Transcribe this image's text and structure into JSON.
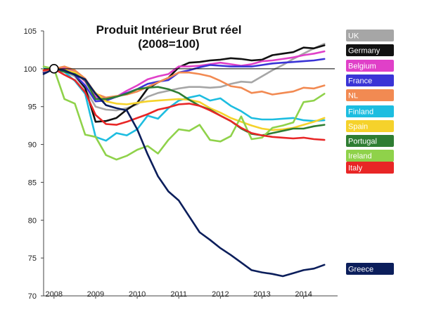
{
  "chart_data": {
    "type": "line",
    "title": "Produit Intérieur Brut réel",
    "subtitle": "(2008=100)",
    "xlabel": "",
    "ylabel": "",
    "xlim": [
      2007.75,
      2014.75
    ],
    "ylim": [
      70,
      105
    ],
    "y_ticks": [
      70,
      75,
      80,
      85,
      90,
      95,
      100,
      105
    ],
    "y_tick_labels": [
      "70",
      "75",
      "80",
      "85",
      "90",
      "95",
      "100",
      "105"
    ],
    "x_ticks": [
      2008,
      2009,
      2010,
      2011,
      2012,
      2013,
      2014
    ],
    "x_tick_labels": [
      "2008",
      "2009",
      "2010",
      "2011",
      "2012",
      "2013",
      "2014"
    ],
    "reference_line": 100,
    "reference_marker": {
      "x": 2008,
      "y": 100
    },
    "grid": false,
    "legend_placement": "right",
    "series": [
      {
        "name": "UK",
        "color": "#a6a6a6",
        "x": [
          2007.75,
          2008,
          2008.25,
          2008.5,
          2008.75,
          2009,
          2009.25,
          2009.5,
          2009.75,
          2010,
          2010.25,
          2010.5,
          2010.75,
          2011,
          2011.25,
          2011.5,
          2011.75,
          2012,
          2012.25,
          2012.5,
          2012.75,
          2013,
          2013.25,
          2013.5,
          2013.75,
          2014,
          2014.25,
          2014.5
        ],
        "values": [
          99.8,
          100,
          99.6,
          99,
          97.3,
          95,
          94.6,
          94.5,
          94.8,
          95.3,
          96.3,
          96.8,
          97.1,
          97.4,
          97.6,
          97.6,
          97.5,
          97.6,
          98,
          98.3,
          98.2,
          99,
          99.8,
          100.5,
          101.3,
          102,
          102.7,
          103.3
        ]
      },
      {
        "name": "Germany",
        "color": "#111111",
        "x": [
          2007.75,
          2008,
          2008.25,
          2008.5,
          2008.75,
          2009,
          2009.25,
          2009.5,
          2009.75,
          2010,
          2010.25,
          2010.5,
          2010.75,
          2011,
          2011.25,
          2011.5,
          2011.75,
          2012,
          2012.25,
          2012.5,
          2012.75,
          2013,
          2013.25,
          2013.5,
          2013.75,
          2014,
          2014.25,
          2014.5
        ],
        "values": [
          99.5,
          100,
          100.2,
          99.2,
          97.5,
          93,
          93.1,
          93.5,
          94.6,
          95.5,
          97.4,
          98.2,
          98.8,
          100.2,
          100.8,
          100.9,
          101.1,
          101.2,
          101.4,
          101.3,
          101.1,
          101.2,
          101.8,
          102,
          102.2,
          102.8,
          102.7,
          103.1
        ]
      },
      {
        "name": "Belgium",
        "color": "#e040c8",
        "x": [
          2007.75,
          2008,
          2008.25,
          2008.5,
          2008.75,
          2009,
          2009.25,
          2009.5,
          2009.75,
          2010,
          2010.25,
          2010.5,
          2010.75,
          2011,
          2011.25,
          2011.5,
          2011.75,
          2012,
          2012.25,
          2012.5,
          2012.75,
          2013,
          2013.25,
          2013.5,
          2013.75,
          2014,
          2014.25,
          2014.5
        ],
        "values": [
          99.8,
          100,
          100.1,
          99.6,
          98.3,
          96.3,
          96,
          96.3,
          97.1,
          97.8,
          98.6,
          99,
          99.3,
          100.3,
          100.3,
          100.4,
          100.6,
          100.8,
          100.6,
          100.4,
          100.6,
          101,
          101.1,
          101.3,
          101.5,
          101.8,
          102,
          102.3
        ]
      },
      {
        "name": "France",
        "color": "#3a34d6",
        "x": [
          2007.75,
          2008,
          2008.25,
          2008.5,
          2008.75,
          2009,
          2009.25,
          2009.5,
          2009.75,
          2010,
          2010.25,
          2010.5,
          2010.75,
          2011,
          2011.25,
          2011.5,
          2011.75,
          2012,
          2012.25,
          2012.5,
          2012.75,
          2013,
          2013.25,
          2013.5,
          2013.75,
          2014,
          2014.25,
          2014.5
        ],
        "values": [
          99.6,
          100,
          99.9,
          99.2,
          97.8,
          95.7,
          95.8,
          96.3,
          96.8,
          97.3,
          98,
          98.3,
          98.5,
          99.5,
          99.8,
          100.2,
          100.5,
          100.4,
          100.3,
          100.3,
          100.3,
          100.5,
          100.7,
          100.8,
          100.9,
          101,
          101.1,
          101.3
        ]
      },
      {
        "name": "NL",
        "color": "#f28a52",
        "x": [
          2007.75,
          2008,
          2008.25,
          2008.5,
          2008.75,
          2009,
          2009.25,
          2009.5,
          2009.75,
          2010,
          2010.25,
          2010.5,
          2010.75,
          2011,
          2011.25,
          2011.5,
          2011.75,
          2012,
          2012.25,
          2012.5,
          2012.75,
          2013,
          2013.25,
          2013.5,
          2013.75,
          2014,
          2014.25,
          2014.5
        ],
        "values": [
          99.7,
          100,
          100.3,
          99.8,
          98.7,
          96.7,
          96.2,
          96.4,
          96.6,
          97,
          97.6,
          98.2,
          98.8,
          99.5,
          99.5,
          99.3,
          99,
          98.4,
          97.7,
          97.5,
          96.8,
          97,
          96.6,
          96.8,
          97,
          97.5,
          97.4,
          97.8
        ]
      },
      {
        "name": "Finland",
        "color": "#1dbde0",
        "x": [
          2007.75,
          2008,
          2008.25,
          2008.5,
          2008.75,
          2009,
          2009.25,
          2009.5,
          2009.75,
          2010,
          2010.25,
          2010.5,
          2010.75,
          2011,
          2011.25,
          2011.5,
          2011.75,
          2012,
          2012.25,
          2012.5,
          2012.75,
          2013,
          2013.25,
          2013.5,
          2013.75,
          2014,
          2014.25,
          2014.5
        ],
        "values": [
          100,
          100,
          99.6,
          98.4,
          96.7,
          91,
          90.5,
          91.5,
          91.2,
          92,
          93.8,
          93.4,
          94.8,
          95.8,
          96.2,
          96.5,
          95.8,
          96.1,
          95.1,
          94.4,
          93.5,
          93.3,
          93.3,
          93.4,
          93.5,
          93.2,
          93.1,
          93.2
        ]
      },
      {
        "name": "Spain",
        "color": "#f5d22b",
        "x": [
          2007.75,
          2008,
          2008.25,
          2008.5,
          2008.75,
          2009,
          2009.25,
          2009.5,
          2009.75,
          2010,
          2010.25,
          2010.5,
          2010.75,
          2011,
          2011.25,
          2011.5,
          2011.75,
          2012,
          2012.25,
          2012.5,
          2012.75,
          2013,
          2013.25,
          2013.5,
          2013.75,
          2014,
          2014.25,
          2014.5
        ],
        "values": [
          99.9,
          100,
          99.9,
          99.5,
          98.5,
          96.8,
          95.7,
          95.4,
          95.3,
          95.5,
          95.7,
          95.8,
          95.9,
          96,
          95.9,
          95.6,
          94.8,
          94.2,
          93.5,
          93,
          92.5,
          92.1,
          91.9,
          92,
          92.2,
          92.6,
          93,
          93.5
        ]
      },
      {
        "name": "Portugal",
        "color": "#2e7d32",
        "x": [
          2007.75,
          2008,
          2008.25,
          2008.5,
          2008.75,
          2009,
          2009.25,
          2009.5,
          2009.75,
          2010,
          2010.25,
          2010.5,
          2010.75,
          2011,
          2011.25,
          2011.5,
          2011.75,
          2012,
          2012.25,
          2012.5,
          2012.75,
          2013,
          2013.25,
          2013.5,
          2013.75,
          2014,
          2014.25,
          2014.5
        ],
        "values": [
          99.8,
          100,
          99.6,
          99.3,
          98.5,
          96,
          96,
          96.3,
          96.7,
          97.3,
          97.5,
          97.6,
          97.3,
          96.8,
          95.9,
          95.1,
          94.6,
          93.8,
          93.1,
          92.1,
          91.4,
          91.2,
          91.5,
          91.8,
          92.1,
          92.1,
          92.4,
          92.6
        ]
      },
      {
        "name": "Ireland",
        "color": "#8fd24a",
        "x": [
          2007.75,
          2008,
          2008.25,
          2008.5,
          2008.75,
          2009,
          2009.25,
          2009.5,
          2009.75,
          2010,
          2010.25,
          2010.5,
          2010.75,
          2011,
          2011.25,
          2011.5,
          2011.75,
          2012,
          2012.25,
          2012.5,
          2012.75,
          2013,
          2013.25,
          2013.5,
          2013.75,
          2014,
          2014.25,
          2014.5
        ],
        "values": [
          100.3,
          100,
          96,
          95.4,
          91.3,
          91,
          88.6,
          88,
          88.5,
          89.3,
          89.8,
          88.8,
          90.6,
          92,
          91.8,
          92.6,
          90.6,
          90.4,
          91.1,
          93.7,
          90.7,
          90.9,
          92.2,
          92.5,
          92.9,
          95.6,
          95.8,
          96.7
        ]
      },
      {
        "name": "Italy",
        "color": "#e82626",
        "x": [
          2007.75,
          2008,
          2008.25,
          2008.5,
          2008.75,
          2009,
          2009.25,
          2009.5,
          2009.75,
          2010,
          2010.25,
          2010.5,
          2010.75,
          2011,
          2011.25,
          2011.5,
          2011.75,
          2012,
          2012.25,
          2012.5,
          2012.75,
          2013,
          2013.25,
          2013.5,
          2013.75,
          2014,
          2014.25,
          2014.5
        ],
        "values": [
          99.8,
          100,
          99.2,
          98.5,
          96.9,
          93.9,
          92.7,
          92.6,
          93,
          93.5,
          94,
          94.6,
          94.9,
          95.3,
          95.4,
          95.1,
          94.5,
          93.8,
          93.1,
          92.2,
          91.5,
          91.2,
          91,
          90.9,
          90.8,
          90.9,
          90.7,
          90.6
        ]
      },
      {
        "name": "Greece",
        "color": "#0b1e5b",
        "x": [
          2007.75,
          2008,
          2008.25,
          2008.5,
          2008.75,
          2009,
          2009.25,
          2009.5,
          2009.75,
          2010,
          2010.25,
          2010.5,
          2010.75,
          2011,
          2011.25,
          2011.5,
          2011.75,
          2012,
          2012.25,
          2012.5,
          2012.75,
          2013,
          2013.25,
          2013.5,
          2013.75,
          2014,
          2014.25,
          2014.5
        ],
        "values": [
          99.3,
          100,
          99.8,
          99.2,
          98.6,
          96.7,
          95.2,
          94.8,
          94.5,
          92,
          88.7,
          85.8,
          83.8,
          82.6,
          80.5,
          78.4,
          77.4,
          76.3,
          75.4,
          74.4,
          73.4,
          73.1,
          72.9,
          72.6,
          73,
          73.4,
          73.6,
          74.1
        ]
      }
    ]
  }
}
